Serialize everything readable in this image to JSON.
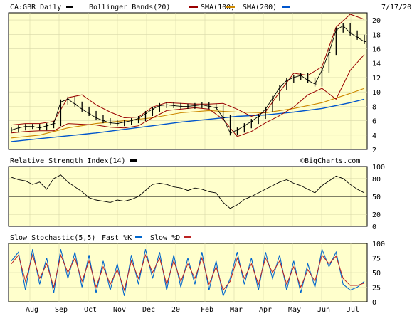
{
  "header": {
    "symbol_label": "CA:GBR Daily",
    "date": "7/17/20"
  },
  "colors": {
    "background": "#ffffff",
    "panel": "#ffffcc",
    "price": "#000000",
    "bollinger": "#990000",
    "sma100": "#cc8800",
    "sma200": "#0055cc",
    "fast_k": "#0066cc",
    "slow_d": "#bb2222"
  },
  "panels": {
    "rsi_title": "Relative Strength Index(14)",
    "stoch_title": "Slow Stochastic(5,5)",
    "watermark": "©BigCharts.com"
  },
  "chart_data": [
    {
      "type": "line",
      "title": "CA:GBR Daily",
      "x_tick_labels": [
        "Aug",
        "Sep",
        "Oct",
        "Nov",
        "Dec",
        "20",
        "Feb",
        "Mar",
        "Apr",
        "May",
        "Jun",
        "Jul"
      ],
      "ylim": [
        2,
        21
      ],
      "y_ticks": [
        2,
        4,
        6,
        8,
        10,
        12,
        14,
        16,
        18,
        20
      ],
      "legend": [
        "CA:GBR Daily",
        "Bollinger Bands(20)",
        "SMA(100)",
        "SMA(200)"
      ],
      "series": [
        {
          "name": "CA:GBR Daily",
          "style": "ohlc",
          "x": [
            0,
            5,
            10,
            15,
            20,
            25,
            30,
            35,
            40,
            45,
            50,
            55,
            60,
            65,
            70,
            75,
            80,
            85,
            90,
            95,
            100,
            105,
            110,
            115,
            120,
            125,
            130,
            135,
            140,
            145,
            150,
            155,
            160,
            165,
            170,
            175,
            180,
            185,
            190,
            195,
            200,
            205,
            210,
            215,
            220,
            225,
            230,
            235,
            240,
            245,
            250
          ],
          "values": [
            4.7,
            5.0,
            5.2,
            5.2,
            5.0,
            5.3,
            5.6,
            8.6,
            9.0,
            8.3,
            7.6,
            7.0,
            6.4,
            6.0,
            5.7,
            5.6,
            5.8,
            6.0,
            6.3,
            7.0,
            7.6,
            8.1,
            8.2,
            8.1,
            8.0,
            8.0,
            8.1,
            8.2,
            8.0,
            7.8,
            6.4,
            4.3,
            4.7,
            5.3,
            5.9,
            6.6,
            7.6,
            9.1,
            10.6,
            11.6,
            12.0,
            12.3,
            11.6,
            11.1,
            13.0,
            15.5,
            18.6,
            19.2,
            18.2,
            17.6,
            17.0
          ]
        },
        {
          "name": "Bollinger Bands(20) upper",
          "x": [
            0,
            10,
            20,
            30,
            40,
            50,
            60,
            70,
            80,
            90,
            100,
            110,
            120,
            130,
            140,
            150,
            160,
            170,
            180,
            190,
            200,
            210,
            220,
            230,
            240,
            250
          ],
          "values": [
            5.4,
            5.6,
            5.6,
            5.9,
            9.2,
            9.6,
            8.2,
            7.2,
            6.4,
            6.5,
            7.9,
            8.5,
            8.4,
            8.3,
            8.3,
            8.4,
            7.6,
            6.6,
            7.2,
            10.0,
            12.6,
            12.3,
            13.5,
            19.0,
            20.8,
            20.1
          ]
        },
        {
          "name": "Bollinger Bands(20) lower",
          "x": [
            0,
            10,
            20,
            30,
            40,
            50,
            60,
            70,
            80,
            90,
            100,
            110,
            120,
            130,
            140,
            150,
            160,
            170,
            180,
            190,
            200,
            210,
            220,
            230,
            240,
            250
          ],
          "values": [
            4.3,
            4.5,
            4.6,
            4.6,
            5.6,
            5.5,
            5.4,
            5.1,
            5.0,
            5.3,
            6.4,
            7.4,
            7.6,
            7.8,
            7.6,
            6.2,
            3.8,
            4.5,
            5.7,
            6.7,
            7.9,
            9.6,
            10.5,
            9.0,
            13.0,
            15.2
          ]
        },
        {
          "name": "SMA(100)",
          "x": [
            0,
            20,
            40,
            60,
            80,
            100,
            120,
            140,
            160,
            180,
            200,
            220,
            240,
            250
          ],
          "values": [
            3.6,
            4.0,
            5.0,
            5.6,
            6.0,
            6.4,
            7.1,
            7.4,
            7.2,
            7.1,
            7.7,
            8.5,
            9.8,
            10.5
          ]
        },
        {
          "name": "SMA(200)",
          "x": [
            0,
            20,
            40,
            60,
            80,
            100,
            120,
            140,
            160,
            180,
            200,
            220,
            240,
            250
          ],
          "values": [
            3.1,
            3.5,
            3.9,
            4.3,
            4.8,
            5.3,
            5.8,
            6.2,
            6.6,
            6.8,
            7.2,
            7.7,
            8.5,
            9.0
          ]
        }
      ]
    },
    {
      "type": "line",
      "title": "Relative Strength Index(14)",
      "ylim": [
        0,
        100
      ],
      "y_ticks": [
        0,
        20,
        50,
        80,
        100
      ],
      "reference_line": 50,
      "legend": [
        "Relative Strength Index(14)"
      ],
      "series": [
        {
          "name": "Relative Strength Index(14)",
          "x": [
            0,
            5,
            10,
            15,
            20,
            25,
            30,
            35,
            40,
            45,
            50,
            55,
            60,
            65,
            70,
            75,
            80,
            85,
            90,
            95,
            100,
            105,
            110,
            115,
            120,
            125,
            130,
            135,
            140,
            145,
            150,
            155,
            160,
            165,
            170,
            175,
            180,
            185,
            190,
            195,
            200,
            205,
            210,
            215,
            220,
            225,
            230,
            235,
            240,
            245,
            250
          ],
          "values": [
            82,
            78,
            76,
            70,
            74,
            62,
            80,
            86,
            74,
            66,
            58,
            48,
            44,
            42,
            40,
            44,
            42,
            45,
            50,
            60,
            70,
            72,
            70,
            66,
            64,
            60,
            64,
            62,
            58,
            56,
            40,
            30,
            36,
            45,
            50,
            56,
            62,
            68,
            74,
            78,
            72,
            68,
            62,
            56,
            68,
            76,
            84,
            80,
            70,
            62,
            56
          ]
        }
      ]
    },
    {
      "type": "line",
      "title": "Slow Stochastic(5,5)",
      "ylim": [
        0,
        100
      ],
      "y_ticks": [
        0,
        25,
        50,
        75,
        100
      ],
      "legend": [
        "Fast %K",
        "Slow %D"
      ],
      "series": [
        {
          "name": "Fast %K",
          "x": [
            0,
            5,
            10,
            15,
            20,
            25,
            30,
            35,
            40,
            45,
            50,
            55,
            60,
            65,
            70,
            75,
            80,
            85,
            90,
            95,
            100,
            105,
            110,
            115,
            120,
            125,
            130,
            135,
            140,
            145,
            150,
            155,
            160,
            165,
            170,
            175,
            180,
            185,
            190,
            195,
            200,
            205,
            210,
            215,
            220,
            225,
            230,
            235,
            240,
            245,
            250
          ],
          "values": [
            70,
            85,
            20,
            90,
            30,
            75,
            15,
            90,
            40,
            85,
            25,
            80,
            15,
            70,
            20,
            65,
            10,
            80,
            30,
            90,
            40,
            85,
            20,
            80,
            25,
            75,
            30,
            85,
            20,
            70,
            10,
            40,
            85,
            30,
            75,
            20,
            85,
            40,
            80,
            20,
            70,
            15,
            65,
            25,
            90,
            60,
            85,
            30,
            20,
            25,
            35
          ]
        },
        {
          "name": "Slow %D",
          "x": [
            0,
            5,
            10,
            15,
            20,
            25,
            30,
            35,
            40,
            45,
            50,
            55,
            60,
            65,
            70,
            75,
            80,
            85,
            90,
            95,
            100,
            105,
            110,
            115,
            120,
            125,
            130,
            135,
            140,
            145,
            150,
            155,
            160,
            165,
            170,
            175,
            180,
            185,
            190,
            195,
            200,
            205,
            210,
            215,
            220,
            225,
            230,
            235,
            240,
            245,
            250
          ],
          "values": [
            65,
            80,
            35,
            80,
            40,
            65,
            25,
            80,
            50,
            75,
            35,
            70,
            25,
            60,
            30,
            55,
            20,
            70,
            40,
            80,
            50,
            75,
            30,
            70,
            35,
            65,
            40,
            75,
            30,
            60,
            20,
            35,
            75,
            40,
            65,
            30,
            75,
            50,
            70,
            30,
            60,
            25,
            55,
            35,
            80,
            65,
            78,
            40,
            28,
            28,
            32
          ]
        }
      ]
    }
  ]
}
